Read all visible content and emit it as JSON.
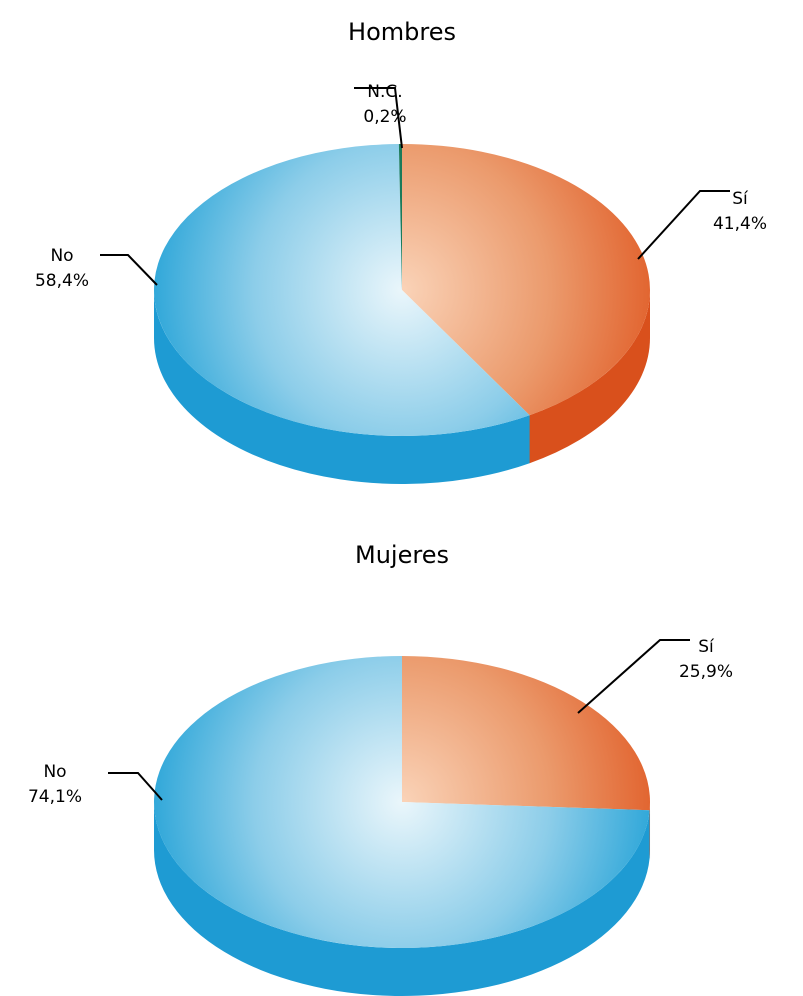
{
  "colors": {
    "si_light": "#fad3b8",
    "si_mid": "#eb9a6c",
    "si_dark": "#e05a24",
    "si_side": "#d9501c",
    "no_light": "#eaf6fb",
    "no_mid": "#8ccde9",
    "no_dark": "#1ea0d6",
    "no_side": "#1e9bd3",
    "nc": "#1a7a5a",
    "leader": "#000000",
    "text": "#1a1a1a"
  },
  "chart_data": [
    {
      "type": "pie",
      "title": "Hombres",
      "slices": [
        {
          "key": "si",
          "label": "Sí",
          "value": 41.4,
          "value_label": "41,4%"
        },
        {
          "key": "no",
          "label": "No",
          "value": 58.4,
          "value_label": "58,4%"
        },
        {
          "key": "nc",
          "label": "N.C.",
          "value": 0.2,
          "value_label": "0,2%"
        }
      ]
    },
    {
      "type": "pie",
      "title": "Mujeres",
      "slices": [
        {
          "key": "si",
          "label": "Sí",
          "value": 25.9,
          "value_label": "25,9%"
        },
        {
          "key": "no",
          "label": "No",
          "value": 74.1,
          "value_label": "74,1%"
        }
      ]
    }
  ]
}
